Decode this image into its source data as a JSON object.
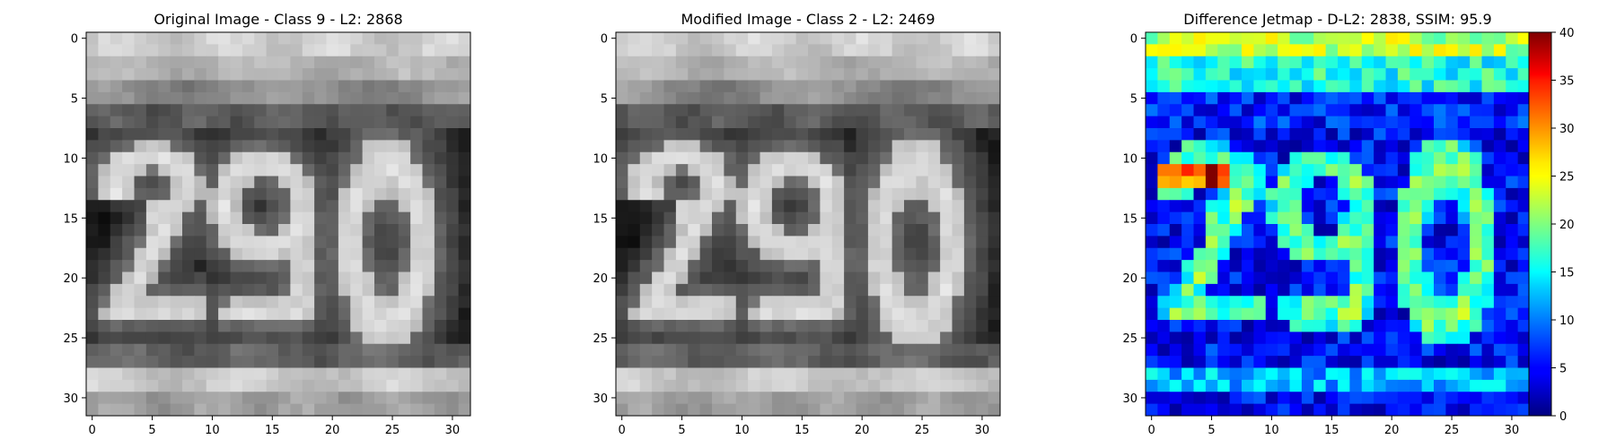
{
  "colors": {
    "modified_title": "#ff0000",
    "default_text": "#000000"
  },
  "panels": [
    {
      "title": "Original Image - Class 9 - L2: 2868",
      "colormap": "gray",
      "image_content": "grayscale crop showing house number 290"
    },
    {
      "title": "Modified Image - Class 2 - L2: 2469",
      "colormap": "gray",
      "title_color": "#ff0000",
      "image_content": "grayscale crop showing house number 290 (perturbed)"
    },
    {
      "title": "Difference Jetmap - D-L2: 2838, SSIM: 95.9",
      "colormap": "jet",
      "image_content": "jet-colormap difference heatmap"
    }
  ],
  "chart_data": [
    {
      "type": "heatmap",
      "title": "Original Image - Class 9 - L2: 2868",
      "colormap": "gray",
      "xlim": [
        -0.5,
        31.5
      ],
      "ylim": [
        31.5,
        -0.5
      ],
      "x_ticks": [
        "0",
        "5",
        "10",
        "15",
        "20",
        "25",
        "30"
      ],
      "y_ticks": [
        "0",
        "5",
        "10",
        "15",
        "20",
        "25",
        "30"
      ]
    },
    {
      "type": "heatmap",
      "title": "Modified Image - Class 2 - L2: 2469",
      "colormap": "gray",
      "xlim": [
        -0.5,
        31.5
      ],
      "ylim": [
        31.5,
        -0.5
      ],
      "x_ticks": [
        "0",
        "5",
        "10",
        "15",
        "20",
        "25",
        "30"
      ],
      "y_ticks": [
        "0",
        "5",
        "10",
        "15",
        "20",
        "25",
        "30"
      ]
    },
    {
      "type": "heatmap",
      "title": "Difference Jetmap - D-L2: 2838, SSIM: 95.9",
      "colormap": "jet",
      "xlim": [
        -0.5,
        31.5
      ],
      "ylim": [
        31.5,
        -0.5
      ],
      "x_ticks": [
        "0",
        "5",
        "10",
        "15",
        "20",
        "25",
        "30"
      ],
      "y_ticks": [
        "0",
        "5",
        "10",
        "15",
        "20",
        "25",
        "30"
      ],
      "colorbar": {
        "min": 0,
        "max": 40,
        "ticks": [
          "0",
          "5",
          "10",
          "15",
          "20",
          "25",
          "30",
          "35",
          "40"
        ]
      }
    }
  ]
}
